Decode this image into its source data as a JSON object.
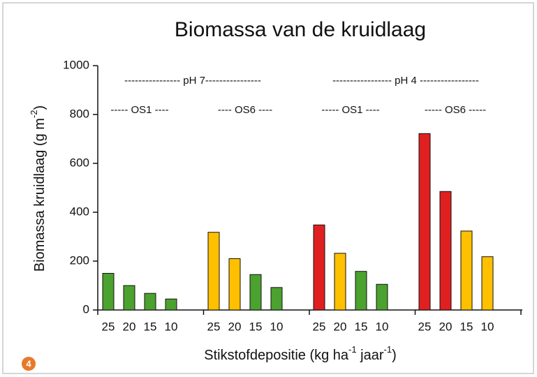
{
  "chart_data": {
    "type": "bar",
    "title": "Biomassa van de kruidlaag",
    "ylabel": "Biomassa kruidlaag (g m",
    "ylabel_sup": "-2",
    "ylabel_end": ")",
    "xlabel": "Stikstofdepositie (kg ha",
    "xlabel_sup1": "-1",
    "xlabel_mid": " jaar",
    "xlabel_sup2": "-1",
    "xlabel_end": ")",
    "categories": [
      "25",
      "20",
      "15",
      "10",
      "25",
      "20",
      "15",
      "10",
      "25",
      "20",
      "15",
      "10",
      "25",
      "20",
      "15",
      "10"
    ],
    "values": [
      150,
      100,
      68,
      45,
      318,
      210,
      145,
      92,
      348,
      232,
      158,
      105,
      722,
      485,
      323,
      218
    ],
    "colors": [
      "#4ca22f",
      "#4ca22f",
      "#4ca22f",
      "#4ca22f",
      "#ffc000",
      "#ffc000",
      "#4ca22f",
      "#4ca22f",
      "#e02020",
      "#ffc000",
      "#4ca22f",
      "#4ca22f",
      "#e02020",
      "#e02020",
      "#ffc000",
      "#ffc000"
    ],
    "ylim": [
      0,
      1000
    ],
    "yticks": [
      0,
      200,
      400,
      600,
      800,
      1000
    ],
    "annotations": [
      "---------------- pH 7----------------",
      "----------------- pH 4 -----------------",
      "----- OS1 ----",
      "---- OS6 ----",
      "----- OS1 ----",
      "----- OS6 -----"
    ],
    "badge": "4"
  }
}
